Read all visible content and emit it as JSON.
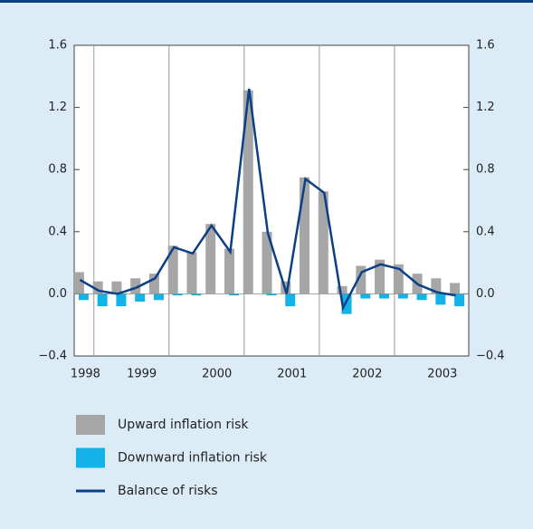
{
  "chart_data": {
    "type": "bar-line",
    "categories": [
      "1998",
      null,
      null,
      "1999",
      null,
      null,
      null,
      "2000",
      null,
      null,
      null,
      "2001",
      null,
      null,
      null,
      "2002",
      null,
      null,
      null,
      "2003",
      null
    ],
    "series": [
      {
        "name": "Upward inflation risk",
        "kind": "bar",
        "color": "#a6a6a6",
        "values": [
          0.14,
          0.08,
          0.08,
          0.1,
          0.13,
          0.31,
          0.27,
          0.45,
          0.29,
          1.31,
          0.4,
          0.08,
          0.75,
          0.66,
          0.05,
          0.18,
          0.22,
          0.19,
          0.13,
          0.1,
          0.07
        ]
      },
      {
        "name": "Downward inflation risk",
        "kind": "bar",
        "color": "#12b3e8",
        "values": [
          -0.04,
          -0.08,
          -0.08,
          -0.05,
          -0.04,
          -0.01,
          -0.01,
          0,
          -0.01,
          0,
          -0.01,
          -0.08,
          0,
          0,
          -0.13,
          -0.03,
          -0.03,
          -0.03,
          -0.04,
          -0.07,
          -0.08
        ]
      },
      {
        "name": "Balance of risks",
        "kind": "line",
        "color": "#0d3f85",
        "values": [
          0.09,
          0.02,
          0.0,
          0.04,
          0.1,
          0.3,
          0.26,
          0.44,
          0.27,
          1.32,
          0.39,
          0.0,
          0.74,
          0.65,
          -0.09,
          0.14,
          0.19,
          0.16,
          0.06,
          0.01,
          -0.01
        ]
      }
    ],
    "ylim": [
      -0.4,
      1.6
    ],
    "yticks": [
      {
        "value": -0.4,
        "label": "−0.4"
      },
      {
        "value": 0,
        "label": "0.0"
      },
      0.4,
      0.8,
      1.2,
      1.6
    ],
    "y2lim": [
      -0.4,
      1.6
    ],
    "y2ticks": [
      {
        "value": -0.4,
        "label": "−0.4"
      },
      {
        "value": 0,
        "label": "0.0"
      },
      0.4,
      0.8,
      1.2,
      1.6
    ],
    "grid": false
  }
}
